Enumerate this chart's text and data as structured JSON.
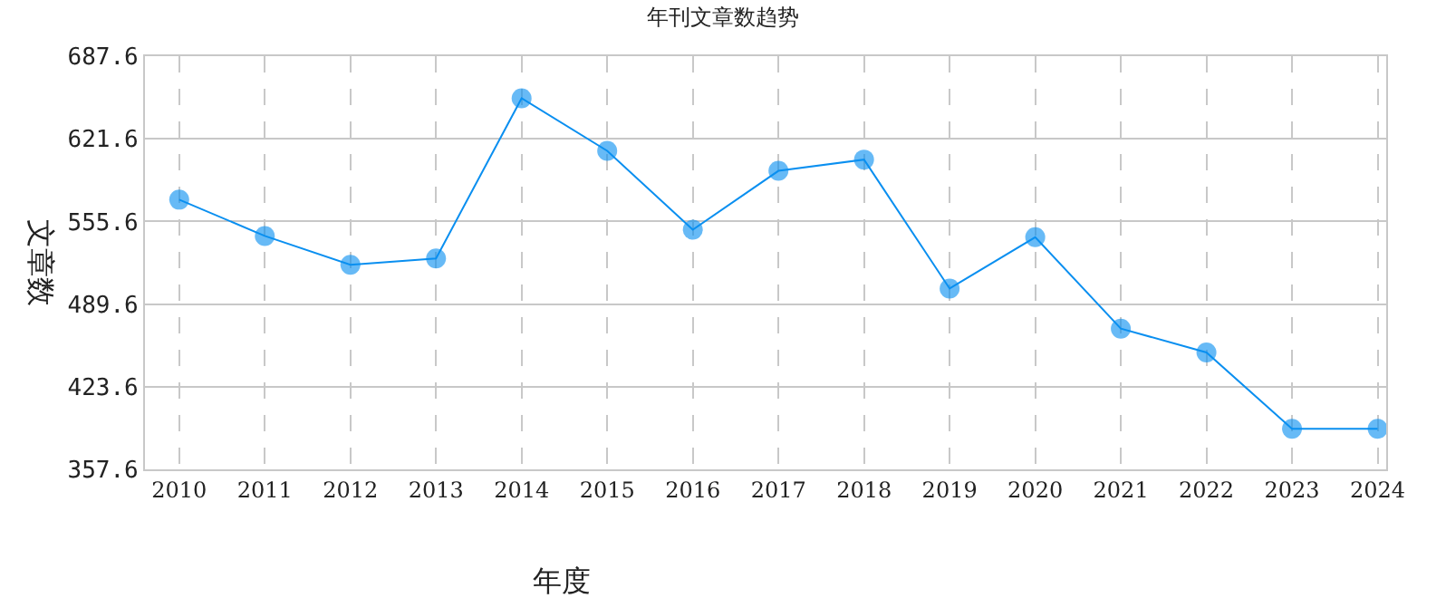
{
  "chart_data": {
    "type": "line",
    "title": "年刊文章数趋势",
    "xlabel": "年度",
    "ylabel": "文章数",
    "categories": [
      "2010",
      "2011",
      "2012",
      "2013",
      "2014",
      "2015",
      "2016",
      "2017",
      "2018",
      "2019",
      "2020",
      "2021",
      "2022",
      "2023",
      "2024"
    ],
    "series": [
      {
        "color": "#0a8ff0",
        "values": [
          573,
          544,
          521,
          526,
          654,
          612,
          549,
          596,
          605,
          502,
          543,
          470,
          451,
          390,
          390
        ]
      }
    ],
    "ylim": [
      357.6,
      687.6
    ],
    "yticks": [
      {
        "value": 357.6,
        "label": "357.6"
      },
      {
        "value": 423.6,
        "label": "423.6"
      },
      {
        "value": 489.6,
        "label": "489.6"
      },
      {
        "value": 555.6,
        "label": "555.6"
      },
      {
        "value": 621.6,
        "label": "621.6"
      },
      {
        "value": 687.6,
        "label": "687.6"
      }
    ],
    "grid": true,
    "marker": "circle",
    "line_style": "solid"
  }
}
